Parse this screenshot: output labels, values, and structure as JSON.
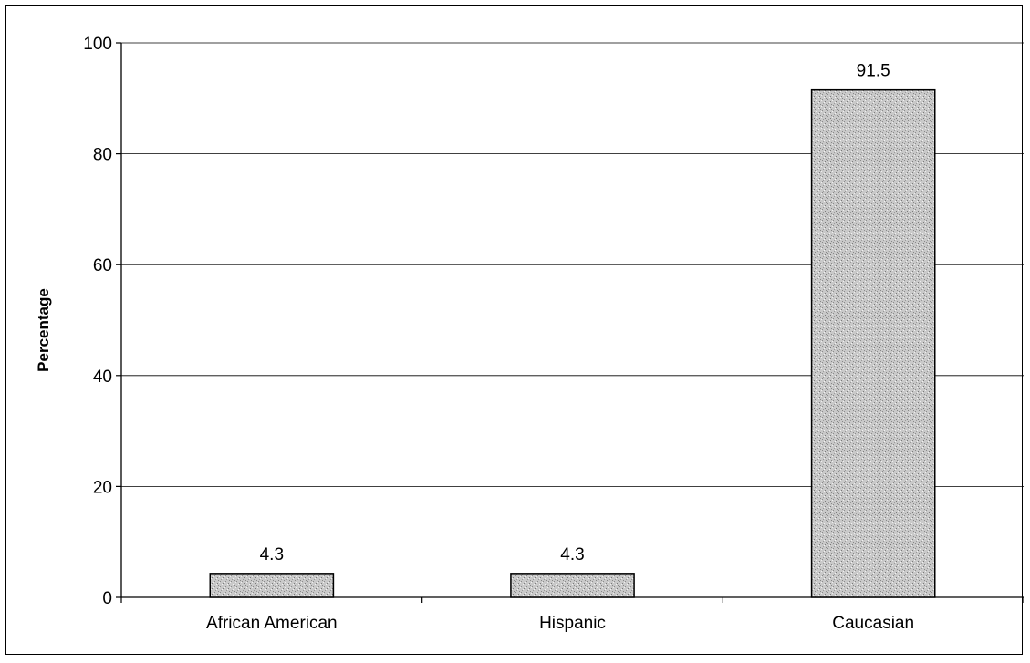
{
  "chart_data": {
    "type": "bar",
    "title": "",
    "xlabel": "",
    "ylabel": "Percentage",
    "categories": [
      "African American",
      "Hispanic",
      "Caucasian"
    ],
    "values": [
      4.3,
      4.3,
      91.5
    ],
    "data_labels": [
      "4.3",
      "4.3",
      "91.5"
    ],
    "ylim": [
      0,
      100
    ],
    "yticks": [
      0,
      20,
      40,
      60,
      80,
      100
    ],
    "ytick_labels": [
      "0",
      "20",
      "40",
      "60",
      "80",
      "100"
    ],
    "grid": true,
    "legend": "none",
    "bar_color": "#c8c8c8",
    "bar_stroke": "#000000",
    "grid_color": "#000000"
  }
}
